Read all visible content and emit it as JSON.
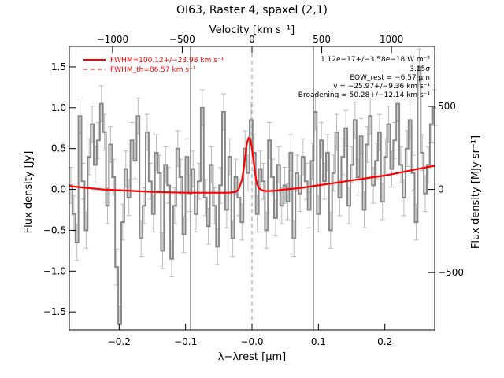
{
  "chart_data": {
    "type": "line",
    "title": "OI63, Raster 4, spaxel (2,1)",
    "xlabel": "λ−λrest [μm]",
    "ylabel": "Flux density [Jy]",
    "top_xlabel": "Velocity [km s⁻¹]",
    "right_ylabel": "Flux density [MJy sr⁻¹]",
    "xlim": [
      -0.275,
      0.275
    ],
    "ylim": [
      -1.72,
      1.75
    ],
    "top_xlim": [
      -1310,
      1310
    ],
    "right_ylim": [
      -845,
      860
    ],
    "x_ticks": [
      -0.2,
      -0.1,
      0.0,
      0.1,
      0.2
    ],
    "x_tick_labels": [
      "−0.2",
      "−0.1",
      "−0.0",
      "0.1",
      "0.2"
    ],
    "y_ticks": [
      -1.5,
      -1.0,
      -0.5,
      0.0,
      0.5,
      1.0,
      1.5
    ],
    "y_tick_labels": [
      "−1.5",
      "−1.0",
      "−0.5",
      "0.0",
      "0.5",
      "1.0",
      "1.5"
    ],
    "top_ticks": [
      -1000,
      -500,
      0,
      500,
      1000
    ],
    "top_tick_labels": [
      "−1000",
      "−500",
      "0",
      "500",
      "1000"
    ],
    "right_ticks": [
      -500,
      0,
      500
    ],
    "right_tick_labels": [
      "−500",
      "0",
      "500"
    ],
    "vlines_solid": [
      -0.093,
      0.093
    ],
    "vline_dashed": 0.0,
    "grid": false,
    "legend_position": "top-left",
    "series": [
      {
        "name": "",
        "color": "#888888",
        "style": "histogram",
        "x": [
          -0.275,
          -0.2704,
          -0.2658,
          -0.2612,
          -0.2566,
          -0.252,
          -0.2474,
          -0.2428,
          -0.2382,
          -0.2336,
          -0.229,
          -0.2244,
          -0.2198,
          -0.2152,
          -0.2106,
          -0.206,
          -0.2014,
          -0.1968,
          -0.1922,
          -0.1876,
          -0.183,
          -0.1784,
          -0.1738,
          -0.1692,
          -0.1646,
          -0.16,
          -0.1554,
          -0.1508,
          -0.1462,
          -0.1416,
          -0.137,
          -0.1324,
          -0.1278,
          -0.1232,
          -0.1186,
          -0.114,
          -0.1094,
          -0.1048,
          -0.1002,
          -0.0956,
          -0.091,
          -0.0864,
          -0.0818,
          -0.0772,
          -0.0726,
          -0.068,
          -0.0634,
          -0.0588,
          -0.0542,
          -0.0496,
          -0.045,
          -0.0404,
          -0.0358,
          -0.0312,
          -0.0266,
          -0.022,
          -0.0174,
          -0.0128,
          -0.0082,
          -0.0036,
          0.001,
          0.0056,
          0.0102,
          0.0148,
          0.0194,
          0.024,
          0.0286,
          0.0332,
          0.0378,
          0.0424,
          0.047,
          0.0516,
          0.0562,
          0.0608,
          0.0654,
          0.07,
          0.0746,
          0.0792,
          0.0838,
          0.0884,
          0.093,
          0.0976,
          0.1022,
          0.1068,
          0.1114,
          0.116,
          0.1206,
          0.1252,
          0.1298,
          0.1344,
          0.139,
          0.1436,
          0.1482,
          0.1528,
          0.1574,
          0.162,
          0.1666,
          0.1712,
          0.1758,
          0.1804,
          0.185,
          0.1896,
          0.1942,
          0.1988,
          0.2034,
          0.208,
          0.2126,
          0.2172,
          0.2218,
          0.2264,
          0.231,
          0.2356,
          0.2402,
          0.2448,
          0.2494,
          0.254,
          0.2586,
          0.2632,
          0.2678,
          0.2724
        ],
        "y": [
          0.05,
          -0.3,
          -0.65,
          0.9,
          0.1,
          -0.5,
          0.4,
          0.8,
          0.3,
          0.6,
          1.05,
          0.7,
          -0.2,
          0.55,
          0.15,
          -0.95,
          -1.65,
          -0.4,
          0.25,
          -0.1,
          0.6,
          0.35,
          0.9,
          -0.6,
          -0.2,
          0.7,
          0.1,
          -0.3,
          0.45,
          0.2,
          -0.75,
          0.3,
          0.05,
          -0.85,
          -0.2,
          0.5,
          0.15,
          -0.55,
          0.4,
          -0.05,
          0.25,
          -0.3,
          0.1,
          1.0,
          -0.1,
          -0.45,
          0.3,
          -0.2,
          -0.7,
          0.05,
          0.95,
          -0.25,
          0.4,
          -0.6,
          0.15,
          -0.1,
          -0.4,
          0.5,
          0.2,
          0.85,
          0.45,
          -0.3,
          0.25,
          0.1,
          -0.5,
          0.6,
          0.15,
          -0.35,
          0.3,
          -0.2,
          0.05,
          -0.15,
          0.45,
          -0.6,
          0.2,
          -0.05,
          0.4,
          0.1,
          -0.25,
          0.35,
          0.95,
          -0.3,
          0.6,
          0.1,
          0.45,
          -0.5,
          0.2,
          0.7,
          -0.1,
          0.4,
          0.75,
          -0.2,
          0.3,
          0.85,
          0.15,
          0.65,
          -0.25,
          0.55,
          0.9,
          0.05,
          0.35,
          0.7,
          -0.15,
          0.4,
          0.8,
          0.25,
          0.6,
          1.05,
          0.3,
          -0.1,
          0.5,
          0.85,
          0.2,
          -0.4,
          1.5,
          0.45,
          -0.05,
          0.3,
          0.8,
          1.0
        ],
        "err": 0.22
      },
      {
        "name": "",
        "color": "#ff0000",
        "style": "line",
        "x": [
          -0.275,
          -0.25,
          -0.225,
          -0.2,
          -0.175,
          -0.15,
          -0.125,
          -0.1,
          -0.075,
          -0.05,
          -0.035,
          -0.025,
          -0.02,
          -0.015,
          -0.0125,
          -0.01,
          -0.0075,
          -0.005,
          -0.0025,
          0.0,
          0.0025,
          0.005,
          0.0075,
          0.01,
          0.015,
          0.02,
          0.025,
          0.035,
          0.05,
          0.075,
          0.1,
          0.125,
          0.15,
          0.175,
          0.2,
          0.225,
          0.25,
          0.275
        ],
        "y": [
          0.04,
          0.02,
          0.0,
          -0.01,
          -0.02,
          -0.03,
          -0.035,
          -0.04,
          -0.04,
          -0.04,
          -0.04,
          -0.03,
          0.0,
          0.12,
          0.25,
          0.42,
          0.57,
          0.63,
          0.62,
          0.5,
          0.34,
          0.18,
          0.07,
          0.02,
          -0.01,
          -0.02,
          -0.02,
          -0.015,
          0.0,
          0.02,
          0.05,
          0.08,
          0.11,
          0.14,
          0.17,
          0.21,
          0.25,
          0.29
        ]
      }
    ],
    "legend": [
      {
        "label": "FWHM=100.12+/−23.98 km s⁻¹",
        "color": "#ff0000",
        "style": "solid"
      },
      {
        "label": "FWHM_th=86.57 km s⁻¹",
        "color": "#ff0000",
        "style": "dashed"
      }
    ],
    "annotations": [
      "1.12e−17+/−3.58e−18 W m⁻²",
      "3.15σ",
      "EOW_rest = −6.57 μm",
      "v = −25.97+/−9.36 km s⁻¹",
      "Broadening = 50.28+/−12.14 km s⁻¹"
    ]
  }
}
